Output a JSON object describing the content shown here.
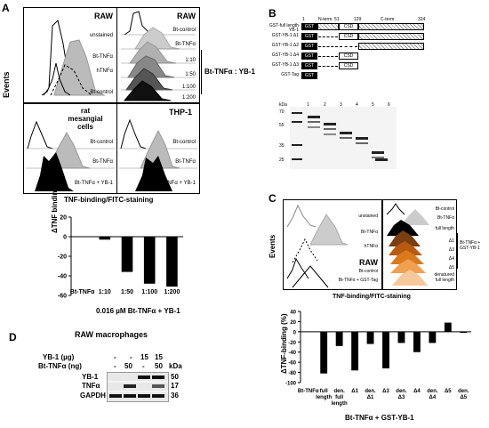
{
  "panels": {
    "A": {
      "label": "A",
      "y_axis_label": "Events",
      "x_axis_label": "TNF-binding/FITC-staining",
      "bracket_label": "Bt-TNFα : YB-1",
      "boxes": [
        {
          "title": "RAW",
          "labels": [
            "unstained",
            "Bt-TNFα",
            "hTNFα",
            "Bt-control"
          ]
        },
        {
          "title": "RAW",
          "labels": [
            "Bt-control",
            "Bt-TNFα",
            "1:10",
            "1:50",
            "1:100",
            "1:200"
          ]
        },
        {
          "title": "rat mesangial cells",
          "labels": [
            "Bt-control",
            "Bt-TNFα",
            "Bt-TNFα + YB-1"
          ]
        },
        {
          "title": "THP-1",
          "labels": [
            "Bt-control",
            "Bt-TNFα",
            "Bt-TNFα + YB-1"
          ]
        }
      ]
    },
    "B": {
      "label": "B",
      "domains": {
        "n": "1",
        "nterm": "N-term.",
        "p51": "51",
        "p129": "129",
        "cterm": "C-term.",
        "p324": "324"
      },
      "constructs": [
        "GST-full length YB-1",
        "GST-YB-1 Δ1",
        "GST-YB-1 Δ2",
        "GST-YB-1 Δ4",
        "GST-YB-1 Δ3",
        "GST-Tag"
      ],
      "tag_label": "GST",
      "csd_label": "CSD",
      "kda_label": "kDa",
      "ladder": [
        "70",
        "55",
        "35",
        "25"
      ],
      "lanes": [
        "1",
        "2",
        "3",
        "4",
        "5",
        "6"
      ]
    },
    "C": {
      "label": "C",
      "y_axis_label": "Events",
      "x_axis_label": "TNF-binding/FITC-staining",
      "raw_label": "RAW",
      "left_labels": [
        "unstained",
        "Bt-TNFα",
        "hTNFα",
        "Bt-control",
        "Bt-TNFα + GST-Tag"
      ],
      "right_labels": [
        "Bt-control",
        "Bt-TNFα",
        "full length",
        "Δ1",
        "Δ3",
        "Δ4",
        "Δ5",
        "denatured full length"
      ],
      "bracket_label": "Bt-TNFα + GST-YB-1"
    },
    "D": {
      "label": "D",
      "title": "RAW macrophages",
      "row_labels": [
        "YB-1 (µg)",
        "Bt-TNFα (ng)"
      ],
      "yb1_vals": [
        "-",
        "-",
        "15",
        "15"
      ],
      "tnf_vals": [
        "-",
        "50",
        "-",
        "50"
      ],
      "kda_label": "kDa",
      "blots": [
        {
          "name": "YB-1",
          "kda": "50"
        },
        {
          "name": "TNFα",
          "kda": "17"
        },
        {
          "name": "GAPDH",
          "kda": "36"
        }
      ]
    }
  },
  "chart_data": [
    {
      "type": "bar",
      "ylabel": "ΔTNF binding (%)",
      "ylim": [
        -60,
        20
      ],
      "yticks": [
        "20",
        "0",
        "-20",
        "-40",
        "-60"
      ],
      "categories": [
        "Bt-TNFα",
        "1:10",
        "1:50",
        "1:100",
        "1:200"
      ],
      "values": [
        0,
        -3,
        -36,
        -48,
        -51
      ],
      "group_label": "0.016 µM Bt-TNFα + YB-1",
      "colors": {
        "bar": "#000000"
      }
    },
    {
      "type": "bar",
      "ylabel": "ΔTNF-binding (%)",
      "ylim": [
        -100,
        40
      ],
      "yticks": [
        "40",
        "20",
        "0",
        "-20",
        "-40",
        "-60",
        "-80",
        "-100"
      ],
      "categories": [
        "Bt-TNFα",
        "full length",
        "den. full length",
        "Δ1",
        "den. Δ1",
        "Δ3",
        "den. Δ3",
        "Δ4",
        "den. Δ4",
        "Δ5",
        "den. Δ5"
      ],
      "values": [
        0,
        -82,
        -28,
        -76,
        -24,
        -72,
        -22,
        -40,
        -22,
        18,
        -2
      ],
      "group_label": "Bt-TNFα + GST-YB-1",
      "colors": {
        "bar": "#000000"
      }
    }
  ]
}
